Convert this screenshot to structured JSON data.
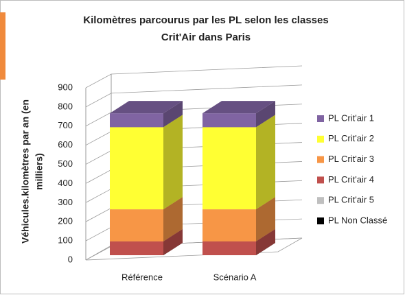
{
  "chart_data": {
    "type": "bar3d_stacked",
    "title": [
      "Kilomètres parcourus par les PL selon les classes",
      "Crit'Air dans Paris"
    ],
    "ylabel": [
      "Véhicules.kilomètres par an (en",
      "milliers)"
    ],
    "categories": [
      "Référence",
      "Scénario A"
    ],
    "series": [
      {
        "name": "PL Crit'air 1",
        "color": "#8064a2",
        "values": [
          80,
          80
        ]
      },
      {
        "name": "PL Crit'air 2",
        "color": "#ffff33",
        "values": [
          475,
          475
        ]
      },
      {
        "name": "PL Crit'air 3",
        "color": "#f79646",
        "values": [
          185,
          185
        ]
      },
      {
        "name": "PL Crit'air 4",
        "color": "#c0504d",
        "values": [
          80,
          80
        ]
      },
      {
        "name": "PL Crit'air 5",
        "color": "#bfbfbf",
        "values": [
          0,
          0
        ]
      },
      {
        "name": "PL Non Classé",
        "color": "#000000",
        "values": [
          0,
          0
        ]
      }
    ],
    "ylim": [
      0,
      900
    ],
    "yticks": [
      0,
      100,
      200,
      300,
      400,
      500,
      600,
      700,
      800,
      900
    ],
    "grid": true,
    "legend": "right"
  }
}
